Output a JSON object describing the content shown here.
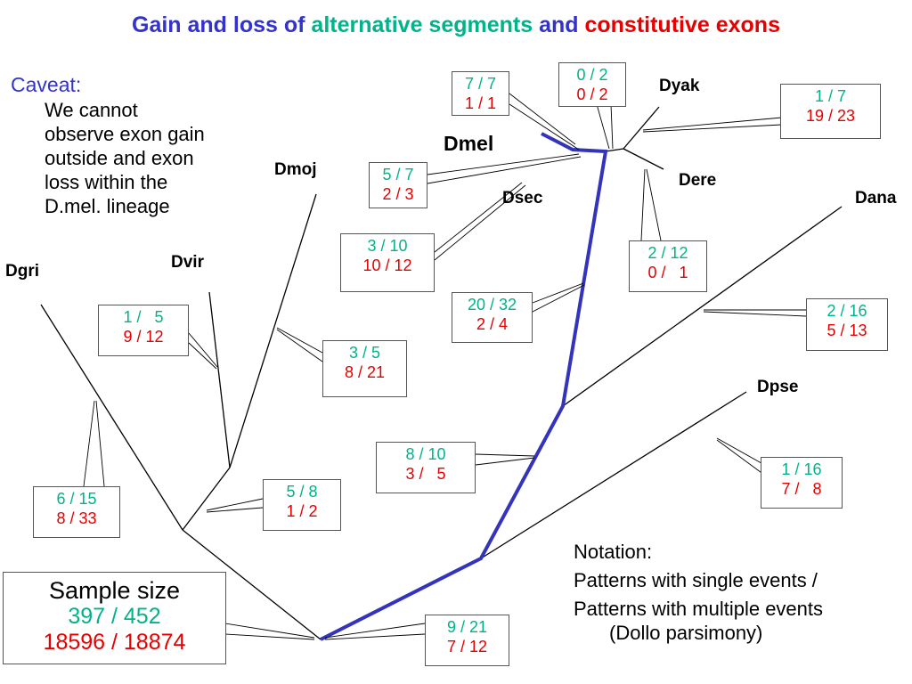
{
  "title": {
    "part1": "Gain and loss of ",
    "part2": "alternative segments",
    "part3": " and ",
    "part4": "constitutive exons"
  },
  "caveat": {
    "heading": "Caveat:",
    "lines": [
      "We cannot",
      "observe exon gain",
      "outside and exon",
      "loss within the",
      "D.mel. lineage"
    ]
  },
  "taxa": {
    "dmel": "Dmel",
    "dyak": "Dyak",
    "dere": "Dere",
    "dsec": "Dsec",
    "dana": "Dana",
    "dpse": "Dpse",
    "dmoj": "Dmoj",
    "dvir": "Dvir",
    "dgri": "Dgri"
  },
  "branch_counts": {
    "dmel": {
      "single": "7 / 7",
      "multi": "1 / 1"
    },
    "mel_sec": {
      "single": "0 / 2",
      "multi": "0 / 2"
    },
    "dyak": {
      "single": "1 / 7",
      "multi": "19 / 23"
    },
    "dsec": {
      "single": "5 / 7",
      "multi": "2 / 3"
    },
    "melsub": {
      "single": "3 / 10",
      "multi": "10 / 12"
    },
    "dere": {
      "single": "2 / 12",
      "multi": "0 /   1"
    },
    "melgroup": {
      "single": "20 / 32",
      "multi": "2 / 4"
    },
    "dana": {
      "single": "2 / 16",
      "multi": "5 / 13"
    },
    "sophophora": {
      "single": "8 / 10",
      "multi": "3 /   5"
    },
    "dpse": {
      "single": "1 / 16",
      "multi": "7 /   8"
    },
    "dvir": {
      "single": "1 /   5",
      "multi": "9 / 12"
    },
    "dmoj": {
      "single": "3 / 5",
      "multi": "8 / 21"
    },
    "dgri": {
      "single": "6 / 15",
      "multi": "8 / 33"
    },
    "virmoj": {
      "single": "5 / 8",
      "multi": "1 / 2"
    },
    "root": {
      "single": "9 / 21",
      "multi": "7 / 12"
    }
  },
  "sample_size": {
    "heading": "Sample size",
    "single": "397 / 452",
    "multi": "18596 / 18874"
  },
  "notation": {
    "heading": "Notation:",
    "line1": "Patterns with single events /",
    "line2": "Patterns with multiple events",
    "line3": "(Dollo parsimony)"
  },
  "colors": {
    "title_blue": "#3333cc",
    "single_events": "#00b38a",
    "multi_events": "#e60000",
    "dmel_lineage": "#3333bb"
  }
}
